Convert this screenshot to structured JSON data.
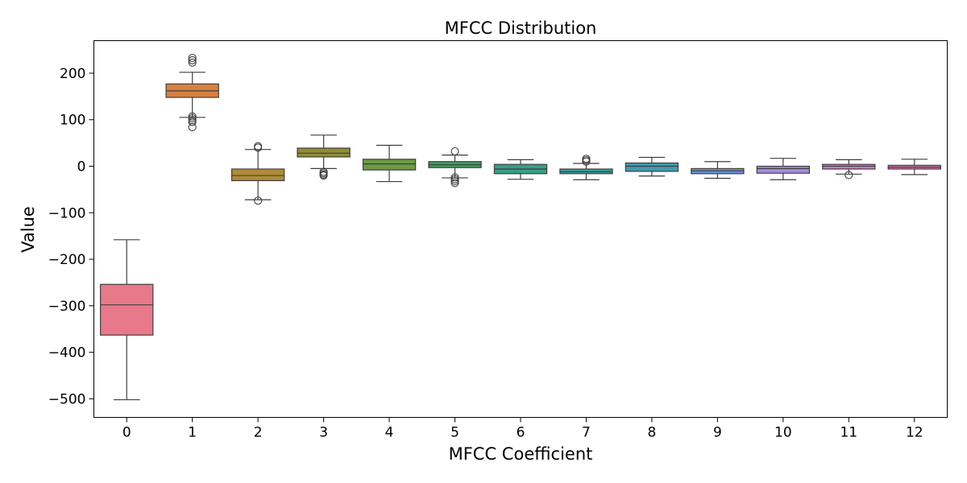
{
  "chart_data": {
    "type": "boxplot",
    "title": "MFCC Distribution",
    "xlabel": "MFCC Coefficient",
    "ylabel": "Value",
    "ylim": [
      -540,
      270
    ],
    "yticks": [
      200,
      100,
      0,
      -100,
      -200,
      -300,
      -400,
      -500
    ],
    "ytick_labels": [
      "200",
      "100",
      "0",
      "−100",
      "−200",
      "−300",
      "−400",
      "−500"
    ],
    "grid": false,
    "categories": [
      "0",
      "1",
      "2",
      "3",
      "4",
      "5",
      "6",
      "7",
      "8",
      "9",
      "10",
      "11",
      "12"
    ],
    "boxes": [
      {
        "category": "0",
        "whisker_low": -502,
        "q1": -363,
        "median": -298,
        "q3": -254,
        "whisker_high": -158,
        "outliers": [],
        "color": "#e8798b"
      },
      {
        "category": "1",
        "whisker_low": 105,
        "q1": 148,
        "median": 162,
        "q3": 177,
        "whisker_high": 202,
        "outliers": [
          233,
          228,
          223,
          107,
          103,
          99,
          95,
          84
        ],
        "color": "#d98041"
      },
      {
        "category": "2",
        "whisker_low": -72,
        "q1": -31,
        "median": -20,
        "q3": -6,
        "whisker_high": 36,
        "outliers": [
          43,
          40,
          -74
        ],
        "color": "#b08b38"
      },
      {
        "category": "3",
        "whisker_low": -5,
        "q1": 20,
        "median": 28,
        "q3": 39,
        "whisker_high": 67,
        "outliers": [
          -12,
          -15,
          -18,
          -20
        ],
        "color": "#8f8f35"
      },
      {
        "category": "4",
        "whisker_low": -33,
        "q1": -8,
        "median": 5,
        "q3": 15,
        "whisker_high": 45,
        "outliers": [],
        "color": "#6b9b45"
      },
      {
        "category": "5",
        "whisker_low": -25,
        "q1": -3,
        "median": 3,
        "q3": 10,
        "whisker_high": 24,
        "outliers": [
          32,
          -24,
          -28,
          -32,
          -36
        ],
        "color": "#3fa060"
      },
      {
        "category": "6",
        "whisker_low": -28,
        "q1": -16,
        "median": -6,
        "q3": 4,
        "whisker_high": 14,
        "outliers": [],
        "color": "#3a9e84"
      },
      {
        "category": "7",
        "whisker_low": -29,
        "q1": -16,
        "median": -12,
        "q3": -6,
        "whisker_high": 6,
        "outliers": [
          16,
          13,
          10
        ],
        "color": "#3b9d9b"
      },
      {
        "category": "8",
        "whisker_low": -21,
        "q1": -11,
        "median": 0,
        "q3": 7,
        "whisker_high": 19,
        "outliers": [],
        "color": "#3f9bb3"
      },
      {
        "category": "9",
        "whisker_low": -26,
        "q1": -16,
        "median": -10,
        "q3": -5,
        "whisker_high": 10,
        "outliers": [],
        "color": "#6b95d6"
      },
      {
        "category": "10",
        "whisker_low": -29,
        "q1": -15,
        "median": -5,
        "q3": 0,
        "whisker_high": 17,
        "outliers": [],
        "color": "#a88be0"
      },
      {
        "category": "11",
        "whisker_low": -17,
        "q1": -6,
        "median": 0,
        "q3": 4,
        "whisker_high": 14,
        "outliers": [
          -19
        ],
        "color": "#d877d2"
      },
      {
        "category": "12",
        "whisker_low": -18,
        "q1": -6,
        "median": -2,
        "q3": 2,
        "whisker_high": 15,
        "outliers": [],
        "color": "#e074ab"
      }
    ]
  }
}
